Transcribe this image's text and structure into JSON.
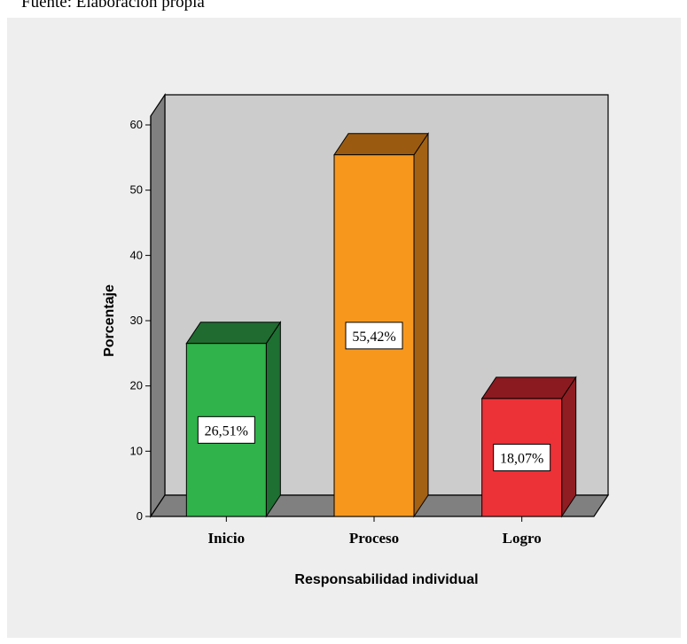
{
  "source_note": "Fuente: Elaboración propia",
  "chart_data": {
    "type": "bar",
    "title": "",
    "xlabel": "Responsabilidad individual",
    "ylabel": "Porcentaje",
    "categories": [
      "Inicio",
      "Proceso",
      "Logro"
    ],
    "values": [
      26.51,
      55.42,
      18.07
    ],
    "data_labels": [
      "26,51%",
      "55,42%",
      "18,07%"
    ],
    "yticks": [
      0,
      10,
      20,
      30,
      40,
      50,
      60
    ],
    "ylim": [
      0,
      60
    ],
    "style": "3d",
    "grid": false,
    "colors": {
      "front": [
        "#2fb34a",
        "#f7981d",
        "#ed3237"
      ],
      "top": [
        "#1f6b30",
        "#9a5b10",
        "#8b1a20"
      ],
      "side": [
        "#1e6f32",
        "#a26113",
        "#8f1d22"
      ],
      "plot_background": "#cccccc",
      "plot_walls": "#808080",
      "panel": "#eeeeee"
    }
  }
}
